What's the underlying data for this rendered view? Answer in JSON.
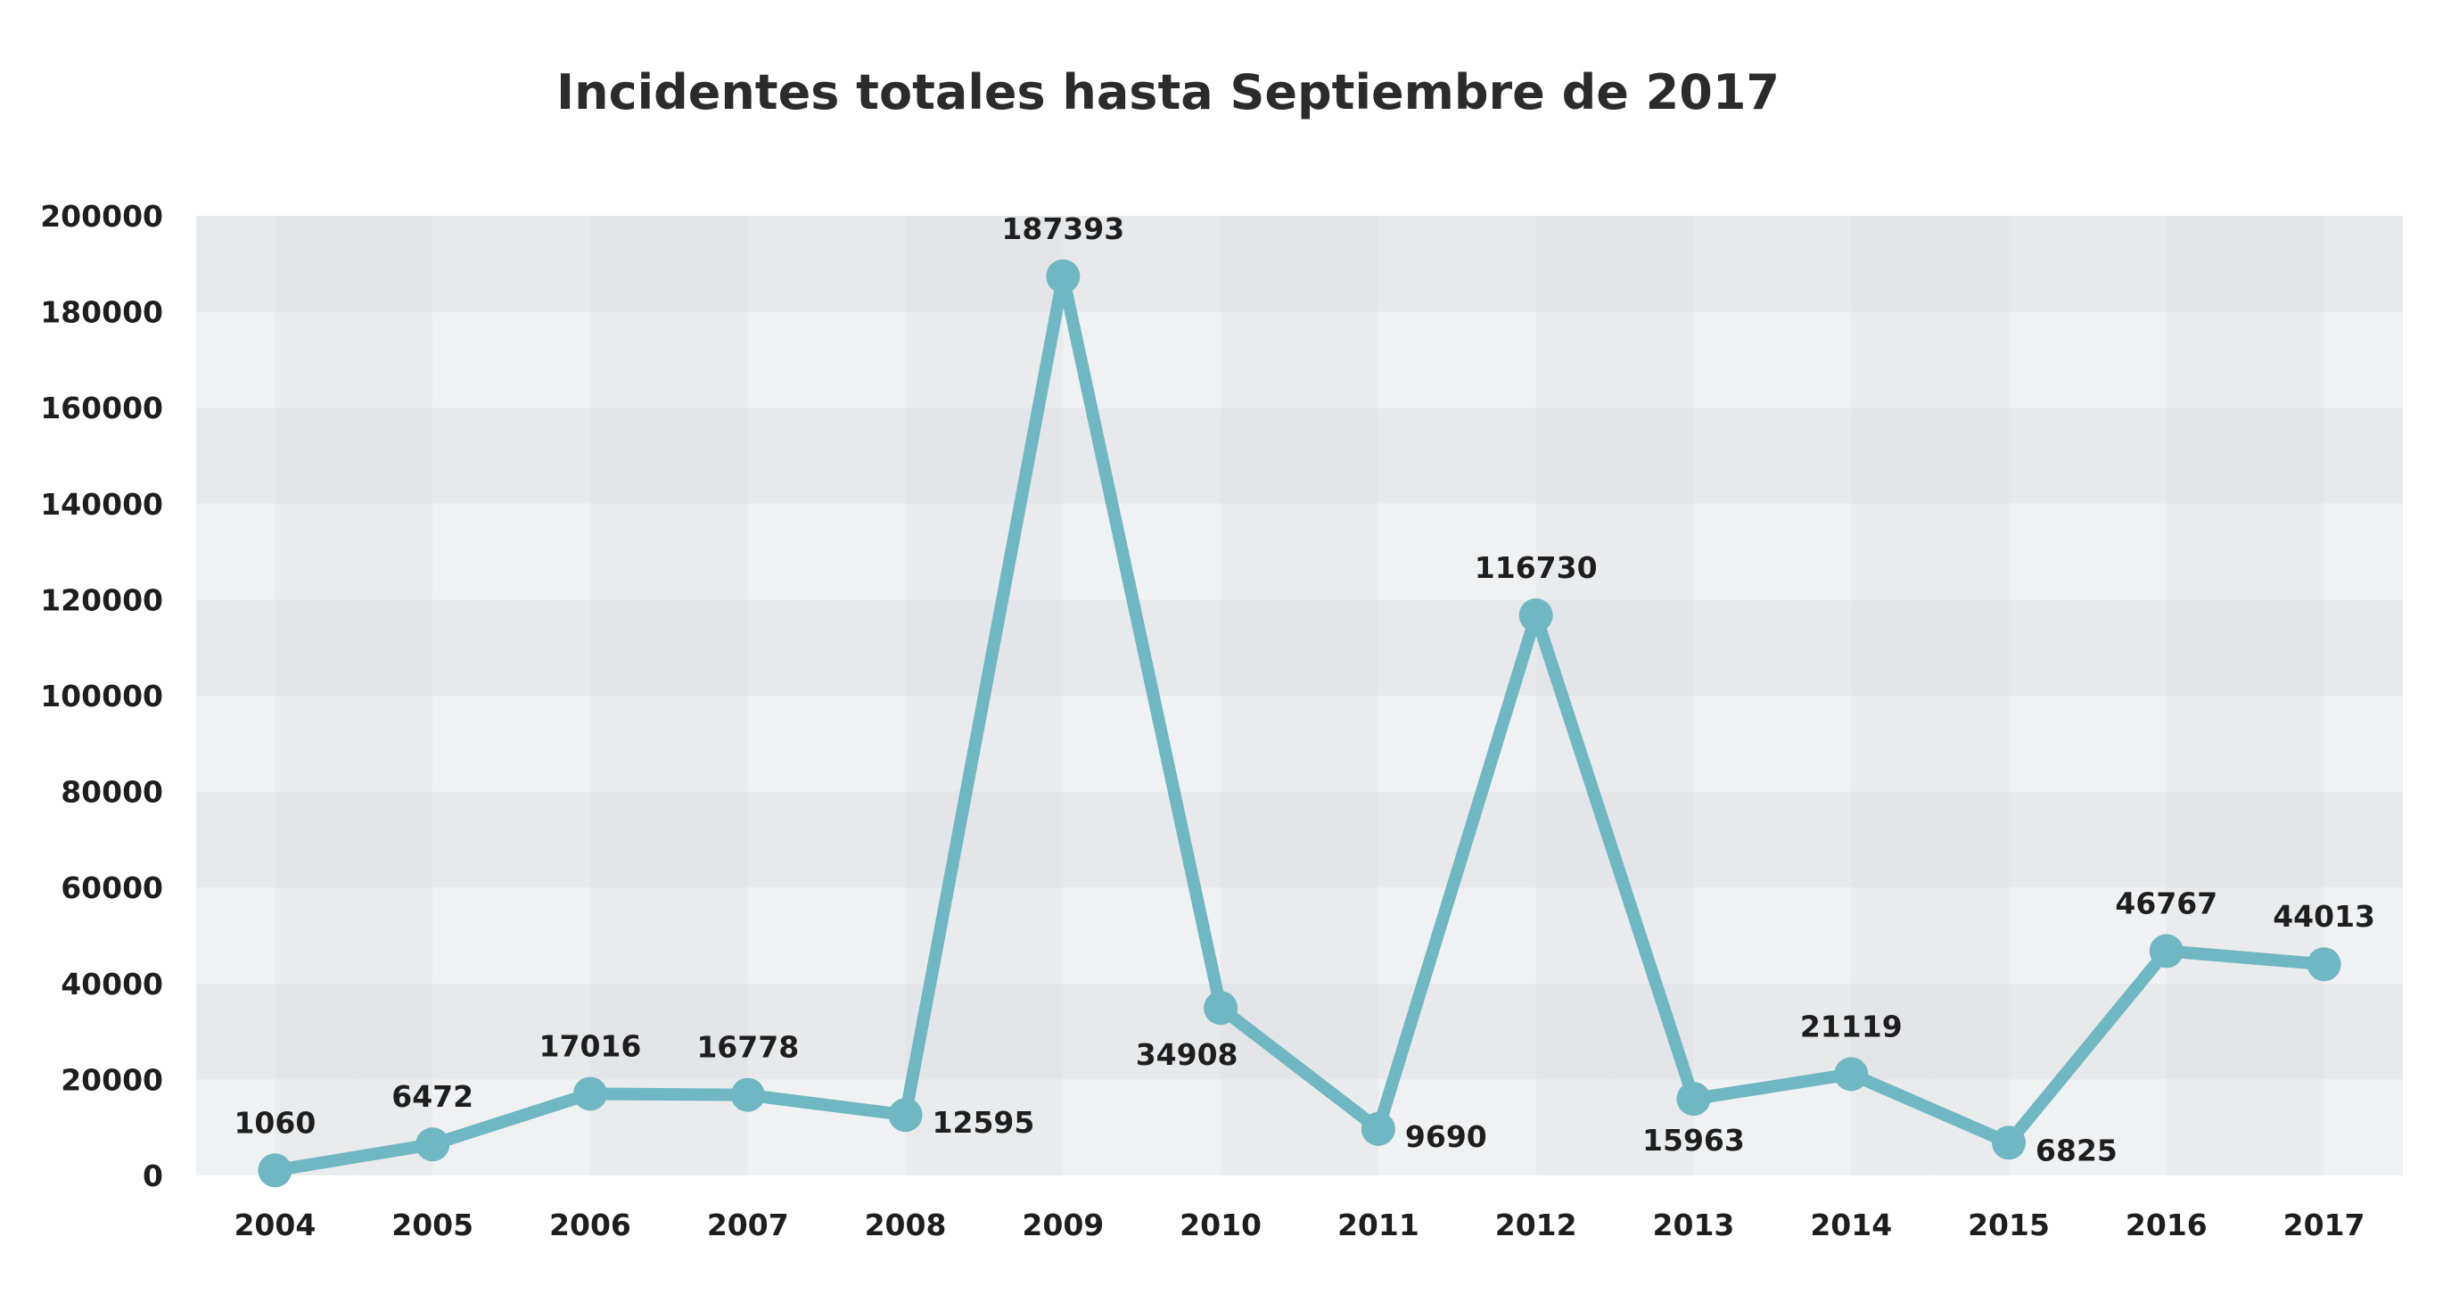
{
  "chart_data": {
    "type": "line",
    "title": "Incidentes totales hasta Septiembre de 2017",
    "xlabel": "",
    "ylabel": "",
    "categories": [
      "2004",
      "2005",
      "2006",
      "2007",
      "2008",
      "2009",
      "2010",
      "2011",
      "2012",
      "2013",
      "2014",
      "2015",
      "2016",
      "2017"
    ],
    "series": [
      {
        "values": [
          1060,
          6472,
          17016,
          16778,
          12595,
          187393,
          34908,
          9690,
          116730,
          15963,
          21119,
          6825,
          46767,
          44013
        ]
      }
    ],
    "data_labels": [
      "1060",
      "6472",
      "17016",
      "16778",
      "12595",
      "187393",
      "34908",
      "9690",
      "116730",
      "15963",
      "21119",
      "6825",
      "46767",
      "44013"
    ],
    "data_label_positions": [
      "above",
      "above",
      "above",
      "above",
      "right",
      "above",
      "below-left",
      "right",
      "above",
      "below",
      "above",
      "right",
      "above",
      "above"
    ],
    "ylim": [
      0,
      200000
    ],
    "yticks": [
      0,
      20000,
      40000,
      60000,
      80000,
      100000,
      120000,
      140000,
      160000,
      180000,
      200000
    ],
    "ytick_labels": [
      "0",
      "20000",
      "40000",
      "60000",
      "80000",
      "100000",
      "120000",
      "140000",
      "160000",
      "180000",
      "200000"
    ],
    "grid": false,
    "legend": "none",
    "colors": {
      "line": "#6fb7c2",
      "band_dark": "#e8e9eb",
      "band_light": "#f0f1f3",
      "column_shade": "#dedfe2",
      "text": "#1e1e1e"
    }
  }
}
